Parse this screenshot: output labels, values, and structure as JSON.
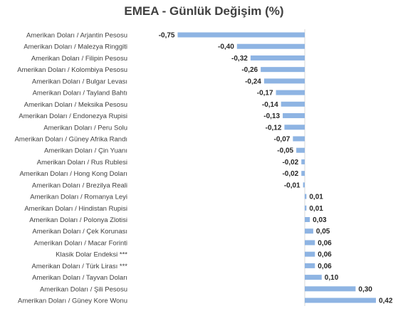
{
  "chart_data": {
    "type": "bar",
    "orientation": "horizontal",
    "title": "EMEA - Günlük Değişim (%)",
    "categories": [
      "Amerikan Doları / Arjantin Pesosu",
      "Amerikan Doları / Malezya Ringgiti",
      "Amerikan Doları / Filipin Pesosu",
      "Amerikan Doları / Kolombiya Pesosu",
      "Amerikan Doları / Bulgar Levası",
      "Amerikan Doları / Tayland Bahtı",
      "Amerikan Doları / Meksika Pesosu",
      "Amerikan Doları / Endonezya Rupisi",
      "Amerikan Doları / Peru Solu",
      "Amerikan Doları / Güney Afrika Randı",
      "Amerikan Doları / Çin Yuanı",
      "Amerikan Doları / Rus Rublesi",
      "Amerikan Doları / Hong Kong Doları",
      "Amerikan Doları / Brezilya Reali",
      "Amerikan Doları / Romanya Leyi",
      "Amerikan Doları / Hindistan Rupisi",
      "Amerikan Doları / Polonya Zlotisi",
      "Amerikan Doları / Çek Korunası",
      "Amerikan Doları / Macar Forinti",
      "Klasik Dolar Endeksi ***",
      "Amerikan Doları / Türk Lirası ***",
      "Amerikan Doları / Tayvan Doları",
      "Amerikan Doları / Şili Pesosu",
      "Amerikan Doları / Güney Kore Wonu"
    ],
    "values": [
      -0.75,
      -0.4,
      -0.32,
      -0.26,
      -0.24,
      -0.17,
      -0.14,
      -0.13,
      -0.12,
      -0.07,
      -0.05,
      -0.02,
      -0.02,
      -0.01,
      0.01,
      0.01,
      0.03,
      0.05,
      0.06,
      0.06,
      0.06,
      0.1,
      0.3,
      0.42
    ],
    "value_labels": [
      "-0,75",
      "-0,40",
      "-0,32",
      "-0,26",
      "-0,24",
      "-0,17",
      "-0,14",
      "-0,13",
      "-0,12",
      "-0,07",
      "-0,05",
      "-0,02",
      "-0,02",
      "-0,01",
      "0,01",
      "0,01",
      "0,03",
      "0,05",
      "0,06",
      "0,06",
      "0,06",
      "0,10",
      "0,30",
      "0,42"
    ],
    "xlim": [
      -0.75,
      0.42
    ],
    "grid": false,
    "bar_color": "#8eb4e3",
    "axis_color": "#d9d9d9"
  }
}
